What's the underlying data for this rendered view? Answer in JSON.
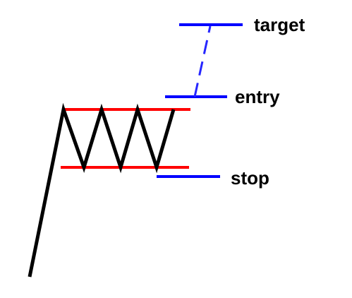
{
  "labels": {
    "target": "target",
    "entry": "entry",
    "stop": "stop"
  },
  "colors": {
    "price_path": "#000000",
    "range_bounds": "#ff0000",
    "levels": "#0000ff",
    "projection": "#2626ff",
    "text": "#000000",
    "background": "#ffffff"
  }
}
